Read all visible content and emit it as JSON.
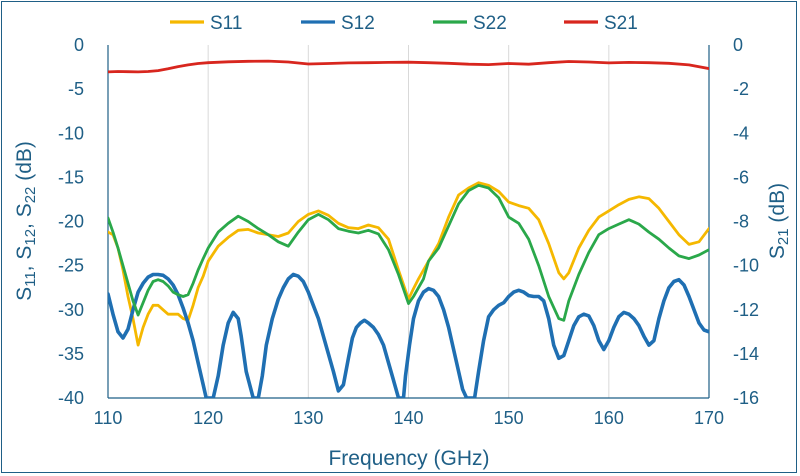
{
  "chart_data": {
    "type": "line",
    "xlabel": "Frequency (GHz)",
    "xlim": [
      110,
      170
    ],
    "x_ticks": [
      "110",
      "120",
      "130",
      "140",
      "150",
      "160",
      "170"
    ],
    "ylabel_left": {
      "main": "S",
      "sub1": "11",
      "sep1": ", S",
      "sub2": "12",
      "sep2": ", S",
      "sub3": "22",
      "tail": " (dB)"
    },
    "ylim_left": [
      -40,
      0
    ],
    "y_ticks_left": [
      "0",
      "-5",
      "-10",
      "-15",
      "-20",
      "-25",
      "-30",
      "-35",
      "-40"
    ],
    "ylabel_right": {
      "main": "S",
      "sub": "21",
      "tail": " (dB)"
    },
    "ylim_right": [
      -16,
      0
    ],
    "y_ticks_right": [
      "0",
      "-2",
      "-4",
      "-6",
      "-8",
      "-10",
      "-12",
      "-14",
      "-16"
    ],
    "grid": "vertical",
    "legend_position": "top",
    "series": [
      {
        "name": "S11",
        "axis": "left",
        "color": "#f5b800",
        "x": [
          110,
          110.5,
          111,
          111.5,
          112,
          112.5,
          113,
          113.5,
          114,
          114.5,
          115,
          115.5,
          116,
          116.5,
          117,
          117.5,
          118,
          118.5,
          119,
          119.5,
          120,
          121,
          122,
          123,
          124,
          125,
          126,
          127,
          128,
          129,
          130,
          131,
          132,
          133,
          134,
          135,
          136,
          137,
          138,
          139,
          140,
          140.5,
          141,
          141.5,
          142,
          143,
          144,
          145,
          146,
          147,
          148,
          149,
          150,
          151,
          152,
          153,
          154,
          155,
          155.5,
          156,
          157,
          158,
          159,
          160,
          161,
          162,
          163,
          164,
          165,
          166,
          167,
          168,
          169,
          170
        ],
        "values": [
          -21.2,
          -21.5,
          -23,
          -25.5,
          -28.5,
          -31,
          -34,
          -32,
          -30.5,
          -29.5,
          -29.5,
          -30,
          -30.5,
          -30.5,
          -30.5,
          -31,
          -31.2,
          -29.5,
          -27.5,
          -26.2,
          -24.5,
          -22.8,
          -21.8,
          -21,
          -20.9,
          -21.3,
          -21.5,
          -21.7,
          -21.3,
          -20,
          -19.2,
          -18.8,
          -19.3,
          -20.2,
          -20.7,
          -20.8,
          -20.4,
          -20.7,
          -22,
          -25.5,
          -28.8,
          -27.6,
          -26.5,
          -25.5,
          -24.5,
          -22.5,
          -19.5,
          -17,
          -16.2,
          -15.6,
          -15.9,
          -16.6,
          -17.8,
          -18.2,
          -18.5,
          -19.8,
          -22.5,
          -25.8,
          -26.5,
          -25.8,
          -23,
          -21,
          -19.5,
          -18.8,
          -18.1,
          -17.5,
          -17.2,
          -17.4,
          -18.5,
          -20,
          -21.5,
          -22.6,
          -22.3,
          -20.8
        ]
      },
      {
        "name": "S12",
        "axis": "left",
        "color": "#1f6fb2",
        "x": [
          110,
          110.5,
          111,
          111.5,
          112,
          112.5,
          113,
          113.5,
          114,
          114.5,
          115,
          115.5,
          116,
          116.5,
          117,
          117.5,
          118,
          118.5,
          119,
          119.5,
          119.8,
          120.5,
          121,
          121.5,
          122,
          122.5,
          123,
          123.3,
          123.8,
          124.5,
          125,
          125.4,
          125.8,
          126.4,
          127,
          127.5,
          128,
          128.5,
          129,
          129.5,
          130,
          130.5,
          131,
          131.5,
          132,
          132.5,
          133,
          133.5,
          134,
          134.4,
          134.8,
          135.2,
          135.6,
          136,
          136.5,
          137,
          137.5,
          138,
          138.5,
          139,
          139.2,
          139.5,
          139.7,
          140.1,
          140.5,
          141,
          141.5,
          142,
          142.5,
          143,
          143.5,
          144,
          144.5,
          145,
          145.4,
          145.8,
          146.1,
          146.6,
          147,
          147.5,
          148,
          148.5,
          149,
          149.5,
          150,
          150.5,
          151,
          151.5,
          152,
          152.5,
          153,
          153.5,
          154,
          154.5,
          155,
          155.5,
          156,
          156.5,
          157,
          157.5,
          158,
          158.5,
          159,
          159.5,
          160,
          160.5,
          161,
          161.5,
          162,
          162.5,
          163,
          163.5,
          164,
          164.5,
          165,
          165.5,
          166,
          166.5,
          167,
          167.5,
          168,
          168.5,
          169,
          169.5,
          170
        ],
        "values": [
          -28.2,
          -30.5,
          -32.5,
          -33.2,
          -32.2,
          -30,
          -28,
          -27,
          -26.3,
          -26,
          -26,
          -26.1,
          -26.5,
          -27.2,
          -28.3,
          -29.8,
          -31.5,
          -33.5,
          -36,
          -38.5,
          -40,
          -40,
          -37.5,
          -34,
          -31.5,
          -30.3,
          -31,
          -33,
          -37,
          -40,
          -40,
          -37.5,
          -34,
          -31,
          -28.8,
          -27.5,
          -26.5,
          -26,
          -26.2,
          -26.8,
          -28,
          -29.5,
          -31,
          -33,
          -35,
          -37,
          -39.2,
          -38.5,
          -35.5,
          -33.2,
          -32,
          -31.5,
          -31.2,
          -31.5,
          -32,
          -32.8,
          -34,
          -36,
          -38,
          -40,
          -40,
          -40,
          -37.5,
          -34,
          -31,
          -29,
          -28,
          -27.6,
          -27.8,
          -28.5,
          -30,
          -32,
          -34.5,
          -37,
          -39,
          -40,
          -40,
          -40,
          -37,
          -33.5,
          -30.8,
          -30,
          -29.5,
          -29.2,
          -28.5,
          -28,
          -27.8,
          -28,
          -28.4,
          -28.5,
          -28.5,
          -29,
          -31,
          -34,
          -35.5,
          -35.2,
          -33.5,
          -31.8,
          -30.8,
          -30.5,
          -30.7,
          -31.8,
          -33.5,
          -34.5,
          -33.5,
          -32,
          -30.8,
          -30.3,
          -30.5,
          -31,
          -31.8,
          -33,
          -34,
          -33.5,
          -31,
          -29,
          -27.5,
          -26.8,
          -26.6,
          -27.2,
          -28.5,
          -30,
          -31.5,
          -32.3,
          -32.5
        ]
      },
      {
        "name": "S22",
        "axis": "left",
        "color": "#2aa84a",
        "x": [
          110,
          110.5,
          111,
          111.5,
          112,
          112.5,
          113,
          113.5,
          114,
          114.5,
          115,
          115.5,
          116,
          116.5,
          117,
          117.5,
          118,
          118.5,
          119,
          119.5,
          120,
          121,
          122,
          123,
          124,
          125,
          126,
          127,
          128,
          129,
          130,
          131,
          132,
          133,
          134,
          135,
          136,
          137,
          138,
          139,
          140,
          140.5,
          141,
          141.5,
          142,
          143,
          144,
          145,
          146,
          147,
          148,
          149,
          150,
          151,
          152,
          153,
          154,
          155,
          155.5,
          156,
          157,
          158,
          159,
          160,
          161,
          162,
          163,
          164,
          165,
          166,
          167,
          168,
          169,
          170
        ],
        "values": [
          -19.6,
          -21.2,
          -23,
          -25,
          -27,
          -29,
          -30.6,
          -29.2,
          -27.8,
          -26.8,
          -26.6,
          -26.8,
          -27.3,
          -28,
          -28.3,
          -28.5,
          -28.3,
          -27,
          -25.5,
          -24.2,
          -23,
          -21.2,
          -20.2,
          -19.4,
          -20,
          -20.8,
          -21.5,
          -22.3,
          -22.8,
          -21.2,
          -19.8,
          -19.2,
          -19.8,
          -20.8,
          -21.1,
          -21.3,
          -21,
          -21.4,
          -23.2,
          -26,
          -29.3,
          -28.5,
          -27.5,
          -26.5,
          -24.5,
          -23,
          -20.5,
          -18,
          -16.5,
          -15.9,
          -16.2,
          -17.3,
          -19.5,
          -20.2,
          -22,
          -25,
          -28.5,
          -31,
          -31.2,
          -29,
          -26,
          -23.5,
          -21.5,
          -20.8,
          -20.3,
          -19.8,
          -20.3,
          -21.2,
          -22,
          -23,
          -23.9,
          -24.2,
          -23.8,
          -23.2
        ]
      },
      {
        "name": "S21",
        "axis": "right",
        "color": "#d8261e",
        "x": [
          110,
          111,
          112,
          113,
          114,
          115,
          116,
          117,
          118,
          119,
          120,
          122,
          124,
          126,
          128,
          130,
          132,
          134,
          136,
          138,
          140,
          142,
          144,
          146,
          148,
          150,
          152,
          154,
          156,
          158,
          160,
          162,
          164,
          166,
          168,
          170
        ],
        "values": [
          -1.22,
          -1.2,
          -1.21,
          -1.22,
          -1.2,
          -1.16,
          -1.08,
          -0.98,
          -0.9,
          -0.84,
          -0.8,
          -0.76,
          -0.74,
          -0.73,
          -0.77,
          -0.86,
          -0.84,
          -0.81,
          -0.8,
          -0.79,
          -0.78,
          -0.8,
          -0.83,
          -0.87,
          -0.89,
          -0.84,
          -0.87,
          -0.8,
          -0.75,
          -0.77,
          -0.81,
          -0.79,
          -0.8,
          -0.83,
          -0.9,
          -1.07
        ]
      }
    ]
  }
}
